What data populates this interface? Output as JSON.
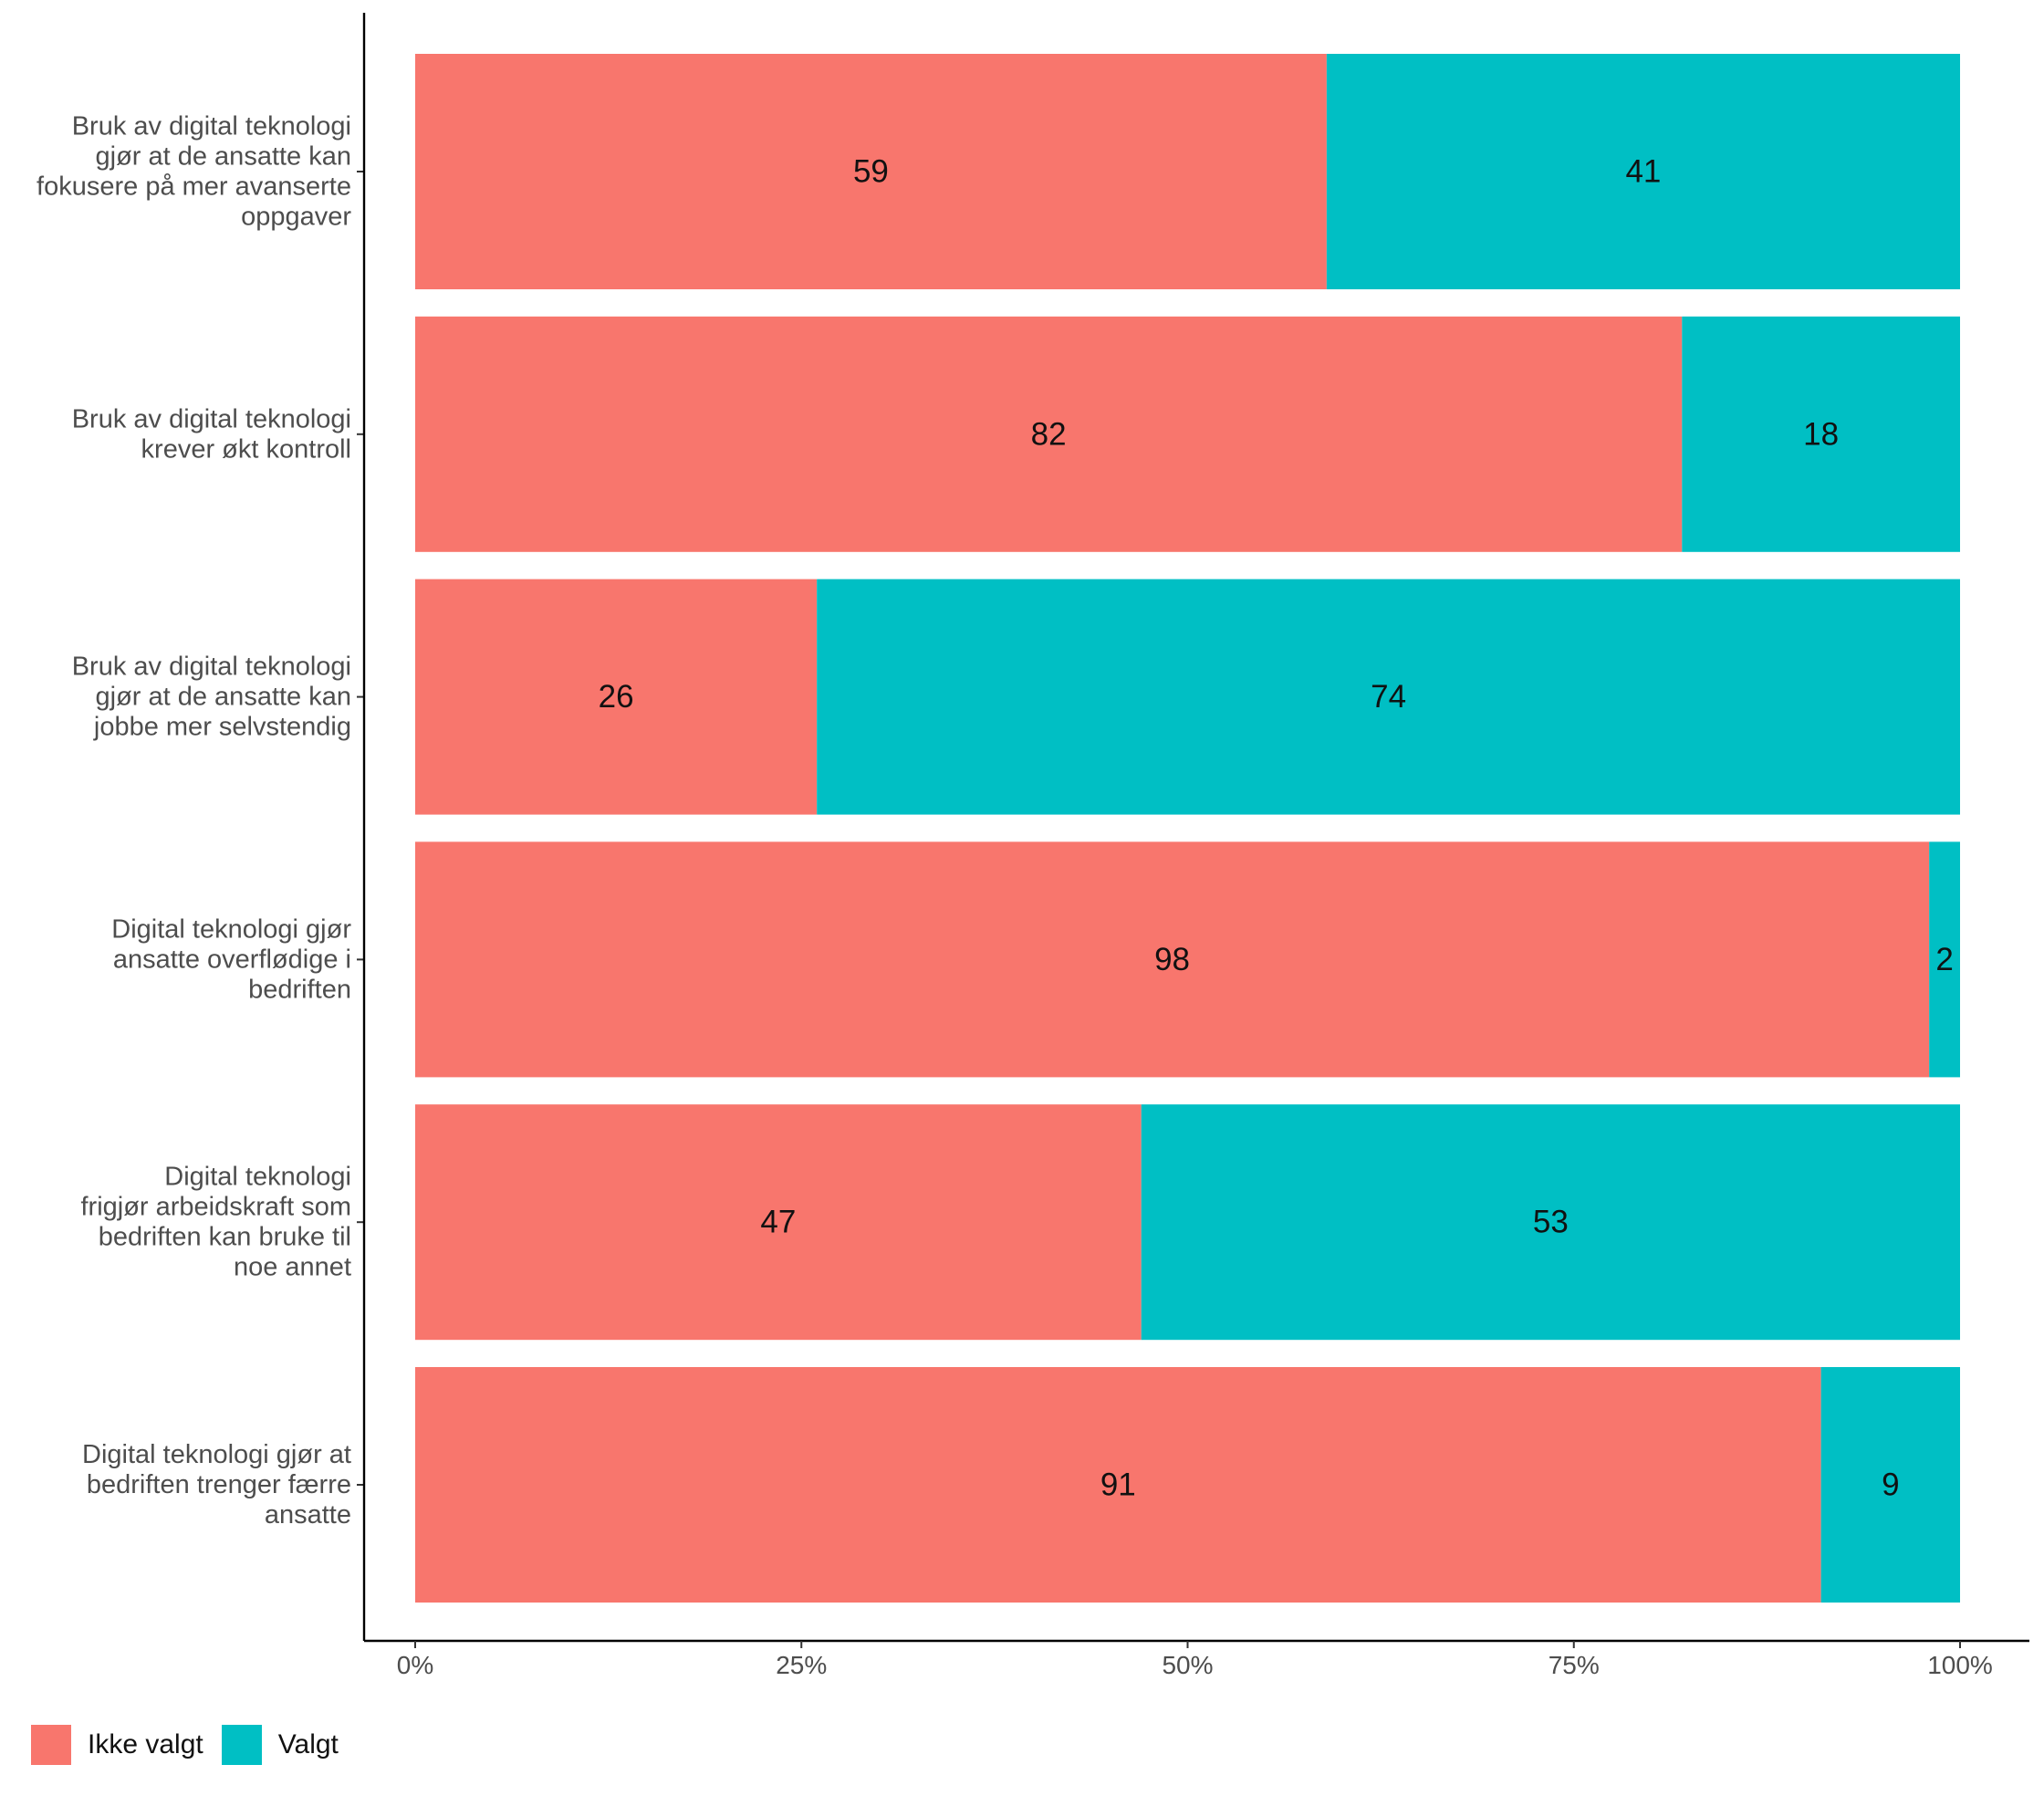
{
  "chart_data": {
    "type": "bar",
    "orientation": "horizontal",
    "stacked": true,
    "normalized": true,
    "categories": [
      "Bruk av digital teknologi gjør at de ansatte kan fokusere på mer avanserte oppgaver",
      "Bruk av digital teknologi krever økt kontroll",
      "Bruk av digital teknologi gjør at de ansatte kan jobbe mer selvstendig",
      "Digital teknologi gjør ansatte overflødige i bedriften",
      "Digital teknologi frigjør arbeidskraft som bedriften kan bruke til noe annet",
      "Digital teknologi gjør at bedriften trenger færre ansatte"
    ],
    "category_lines": [
      [
        "Bruk av digital teknologi",
        "gjør at de ansatte kan",
        "fokusere på mer avanserte",
        "oppgaver"
      ],
      [
        "Bruk av digital teknologi",
        "krever økt kontroll"
      ],
      [
        "Bruk av digital teknologi",
        "gjør at de ansatte kan",
        "jobbe mer selvstendig"
      ],
      [
        "Digital teknologi gjør",
        "ansatte overflødige i",
        "bedriften"
      ],
      [
        "Digital teknologi",
        "frigjør arbeidskraft som",
        "bedriften kan bruke til",
        "noe annet"
      ],
      [
        "Digital teknologi gjør at",
        "bedriften trenger færre",
        "ansatte"
      ]
    ],
    "series": [
      {
        "name": "Ikke valgt",
        "color": "#F8766D",
        "values": [
          59,
          82,
          26,
          98,
          47,
          91
        ]
      },
      {
        "name": "Valgt",
        "color": "#00BFC4",
        "values": [
          41,
          18,
          74,
          2,
          53,
          9
        ]
      }
    ],
    "xlim": [
      0,
      100
    ],
    "x_ticks": [
      0,
      25,
      50,
      75,
      100
    ],
    "x_tick_labels": [
      "0%",
      "25%",
      "50%",
      "75%",
      "100%"
    ],
    "title": "",
    "xlabel": "",
    "ylabel": "",
    "grid": false,
    "legend_position": "bottom-left"
  }
}
